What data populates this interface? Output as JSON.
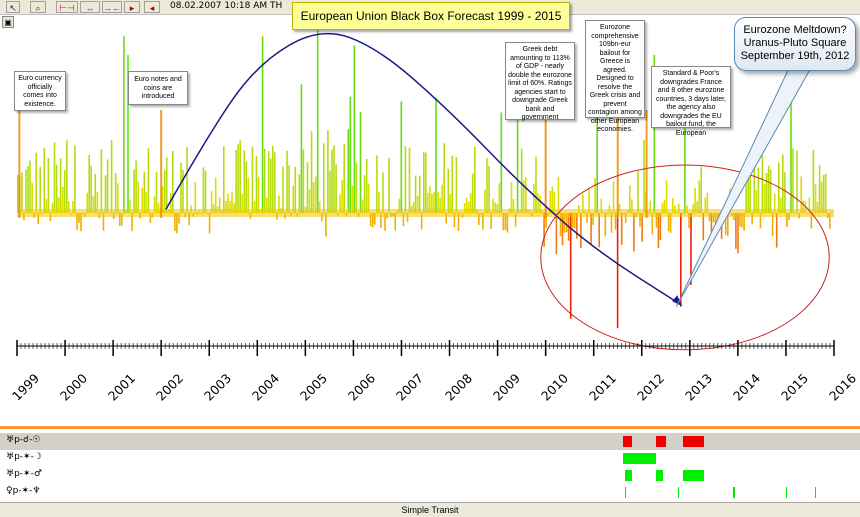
{
  "toolbar": {
    "buttons": [
      "pointer-tool",
      "zoom-tool",
      "range-tool-1",
      "range-tool-2",
      "range-tool-3",
      "next-tool",
      "prev-tool"
    ],
    "date": "08.02.2007  10:18 AM TH"
  },
  "colors": {
    "high": "#66dd11",
    "mid": "#dddd00",
    "low": "#ee2200",
    "overlay_line": "#1a1a8c",
    "ellipse": "#cc2222",
    "transit_red": "#ee0000",
    "transit_green": "#00ee00"
  },
  "chart_data": {
    "type": "bar",
    "title": "European Union Black Box Forecast 1999 - 2015",
    "xlabel": "",
    "ylabel": "",
    "xlim": [
      1999,
      2016
    ],
    "ylim": [
      -1,
      1.1
    ],
    "grid": false,
    "x_ticks": [
      "1999",
      "2000",
      "2001",
      "2002",
      "2003",
      "2004",
      "2005",
      "2006",
      "2007",
      "2008",
      "2009",
      "2010",
      "2011",
      "2012",
      "2013",
      "2014",
      "2015",
      "2016"
    ],
    "overlay_curve": [
      [
        2002.1,
        0.02
      ],
      [
        2003.0,
        0.43
      ],
      [
        2004.0,
        0.8
      ],
      [
        2005.3,
        1.0
      ],
      [
        2006.5,
        0.89
      ],
      [
        2008.0,
        0.55
      ],
      [
        2009.5,
        0.15
      ],
      [
        2011.0,
        -0.3
      ],
      [
        2012.8,
        -0.76
      ]
    ],
    "ellipse_center": [
      2012.9,
      -0.37
    ],
    "ellipse_radius_years": 3.0,
    "ellipse_radius_value": 0.77,
    "notes": [
      {
        "text": "Euro currency officially comes into existence.",
        "date": 1999.05
      },
      {
        "text": "Euro notes and coins are introduced",
        "date": 2002.0
      },
      {
        "text": "Greek debt amounting to 113% of GDP - nearly double the eurozone limit of 60%. Ratings agencies start to downgrade Greek bank and government",
        "date": 2010.0
      },
      {
        "text": "Eurozone comprehensive 109bn-eur bailout for Greece is agreed. Designed to resolve the Greek crisis and prevent contagion among other European economies.",
        "date": 2011.5
      },
      {
        "text": "Standard & Poor's downgrades France and 8 other eurozone countries, 3 days later, the agency also downgrades the EU bailout fund, the European",
        "date": 2012.1
      }
    ],
    "highlight": {
      "text": "Eurozone Meltdown? Uranus-Pluto Square September 19th, 2012",
      "date": 2012.72
    }
  },
  "transits": {
    "rows": [
      {
        "label": "♅p-☌-☉",
        "color": "#ee0000",
        "spans": [
          [
            2011.6,
            2011.8
          ],
          [
            2012.3,
            2012.5
          ],
          [
            2012.85,
            2013.3
          ]
        ]
      },
      {
        "label": "♅p-✶-☽",
        "color": "#00ee00",
        "spans": [
          [
            2011.6,
            2012.3
          ]
        ]
      },
      {
        "label": "♅p-✶-♂",
        "color": "#00ee00",
        "spans": [
          [
            2011.65,
            2011.8
          ],
          [
            2012.3,
            2012.45
          ],
          [
            2012.85,
            2013.3
          ]
        ]
      },
      {
        "label": "♀p-✶-♆",
        "color": "#00ee00",
        "spans": [
          [
            2011.65,
            2011.68
          ],
          [
            2012.75,
            2012.78
          ],
          [
            2013.9,
            2013.93
          ],
          [
            2015.0,
            2015.03
          ],
          [
            2015.6,
            2015.63
          ]
        ]
      }
    ],
    "status": "Simple Transit"
  }
}
